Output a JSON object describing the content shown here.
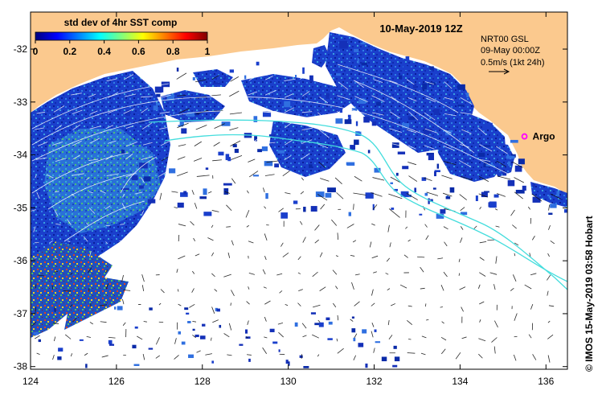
{
  "map": {
    "title": "10-May-2019 12Z",
    "colorbar": {
      "title": "std dev of 4hr SST comp",
      "ticks": [
        "0",
        "0.2",
        "0.4",
        "0.6",
        "0.8",
        "1"
      ],
      "stops": [
        "#00007f",
        "#0000ff",
        "#007fff",
        "#00ffff",
        "#7fff7f",
        "#ffff00",
        "#ff7f00",
        "#ff0000",
        "#7f0000"
      ]
    },
    "info": {
      "line1": "NRT00 GSL",
      "line2": "09-May 00:00Z",
      "line3": "0.5m/s (1kt 24h)"
    },
    "argo": {
      "label": "Argo",
      "lon": 135.5,
      "lat": -33.65,
      "color": "#ff00ff"
    },
    "credit": "© IMOS 15-May-2019 03:58 Hobart",
    "x_ticks": [
      "124",
      "126",
      "128",
      "130",
      "132",
      "134",
      "136"
    ],
    "y_ticks": [
      "-32",
      "-33",
      "-34",
      "-35",
      "-36",
      "-37",
      "-38"
    ],
    "x_range": [
      124,
      136.5
    ],
    "y_range": [
      -38.05,
      -31.3
    ],
    "colors": {
      "land": "#fbc98e",
      "ocean": "#ffffff",
      "contour": "#44dddd"
    }
  }
}
